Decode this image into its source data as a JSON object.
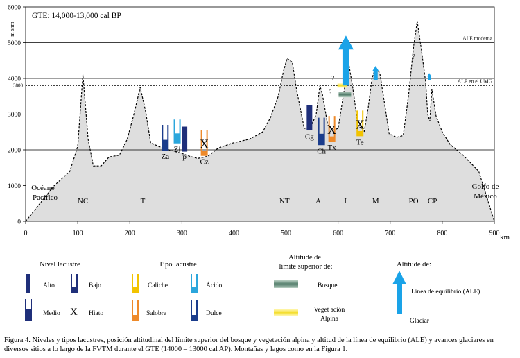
{
  "chart_data": {
    "type": "area",
    "title": "GTE:  14,000-13,000   cal BP",
    "ylabel": "m snm",
    "xlabel": "km",
    "xlim": [
      0,
      900
    ],
    "ylim": [
      0,
      6000
    ],
    "xticks": [
      0,
      100,
      200,
      300,
      400,
      500,
      600,
      700,
      800,
      900
    ],
    "yticks": [
      0,
      1000,
      2000,
      3000,
      4000,
      5000,
      6000
    ],
    "extra_ytick": {
      "value": 3800,
      "label": "3800"
    },
    "hlines": [
      {
        "value": 5000,
        "label": "ALE moderna",
        "style": "solid"
      },
      {
        "value": 4000,
        "label": "",
        "style": "solid"
      },
      {
        "value": 3800,
        "label": "ALE en el UMG",
        "style": "dashed"
      },
      {
        "value": 3000,
        "label": "",
        "style": "solid"
      },
      {
        "value": 2000,
        "label": "",
        "style": "solid"
      }
    ],
    "profile": [
      [
        0,
        0
      ],
      [
        55,
        1000
      ],
      [
        85,
        1400
      ],
      [
        100,
        2100
      ],
      [
        110,
        4100
      ],
      [
        120,
        2300
      ],
      [
        130,
        1550
      ],
      [
        145,
        1550
      ],
      [
        160,
        1800
      ],
      [
        180,
        1850
      ],
      [
        195,
        2300
      ],
      [
        208,
        3000
      ],
      [
        220,
        3750
      ],
      [
        230,
        3100
      ],
      [
        240,
        2200
      ],
      [
        255,
        2100
      ],
      [
        275,
        2000
      ],
      [
        300,
        1900
      ],
      [
        315,
        1820
      ],
      [
        330,
        1760
      ],
      [
        350,
        1820
      ],
      [
        370,
        2050
      ],
      [
        400,
        2200
      ],
      [
        430,
        2300
      ],
      [
        455,
        2500
      ],
      [
        470,
        2900
      ],
      [
        485,
        3500
      ],
      [
        495,
        4200
      ],
      [
        502,
        4560
      ],
      [
        512,
        4450
      ],
      [
        520,
        3700
      ],
      [
        535,
        2600
      ],
      [
        548,
        2650
      ],
      [
        558,
        3000
      ],
      [
        565,
        3800
      ],
      [
        570,
        3550
      ],
      [
        580,
        2700
      ],
      [
        590,
        2550
      ],
      [
        600,
        2600
      ],
      [
        612,
        3700
      ],
      [
        620,
        4450
      ],
      [
        628,
        3750
      ],
      [
        638,
        2700
      ],
      [
        650,
        2500
      ],
      [
        658,
        3200
      ],
      [
        665,
        4000
      ],
      [
        672,
        4300
      ],
      [
        680,
        4150
      ],
      [
        688,
        3400
      ],
      [
        698,
        2450
      ],
      [
        712,
        2350
      ],
      [
        725,
        2400
      ],
      [
        735,
        3500
      ],
      [
        745,
        4900
      ],
      [
        752,
        5600
      ],
      [
        760,
        4800
      ],
      [
        768,
        3900
      ],
      [
        772,
        3000
      ],
      [
        776,
        2800
      ],
      [
        780,
        3700
      ],
      [
        788,
        2950
      ],
      [
        800,
        2500
      ],
      [
        815,
        2150
      ],
      [
        840,
        1850
      ],
      [
        870,
        1400
      ],
      [
        900,
        0
      ]
    ],
    "mountains": [
      {
        "label": "NC",
        "x": 110
      },
      {
        "label": "T",
        "x": 225
      },
      {
        "label": "NT",
        "x": 497
      },
      {
        "label": "A",
        "x": 562
      },
      {
        "label": "I",
        "x": 614
      },
      {
        "label": "M",
        "x": 672
      },
      {
        "label": "PO",
        "x": 745
      },
      {
        "label": "CP",
        "x": 781
      }
    ],
    "sites": [
      {
        "label": "Za",
        "x": 268,
        "lake_type": "Dulce",
        "level": "Medio",
        "bottom": 2000,
        "top": 2700
      },
      {
        "label": "Zi",
        "x": 291,
        "lake_type": "Ácido",
        "level": "Medio",
        "bottom": 2200,
        "top": 2850
      },
      {
        "label": "P",
        "x": 305,
        "lake_type": "Dulce",
        "level": "Alto",
        "bottom": 1950,
        "top": 2650
      },
      {
        "label": "Cz",
        "x": 343,
        "lake_type": "Salobre",
        "level": "Hiato",
        "bottom": 1850,
        "top": 2550
      },
      {
        "label": "Cg",
        "x": 545,
        "lake_type": "Dulce",
        "level": "Alto",
        "bottom": 2550,
        "top": 3250
      },
      {
        "label": "Ch",
        "x": 568,
        "lake_type": "Dulce",
        "level": "Medio",
        "bottom": 2150,
        "top": 2900
      },
      {
        "label": "Tx",
        "x": 588,
        "lake_type": "Salobre",
        "level": "Hiato",
        "bottom": 2250,
        "top": 2950
      },
      {
        "label": "Te",
        "x": 642,
        "lake_type": "Caliche",
        "level": "Hiato",
        "bottom": 2400,
        "top": 3100
      }
    ],
    "treeline": [
      {
        "x": 613,
        "y": 3550
      }
    ],
    "alpine_veg": [
      {
        "x": 608,
        "y": 3800
      }
    ],
    "question_marks": [
      {
        "x": 590,
        "y": 3950
      },
      {
        "x": 585,
        "y": 3550
      },
      {
        "x": 745,
        "y": 4550
      }
    ],
    "ela": [
      {
        "x": 615,
        "base": 3800,
        "top": 5200,
        "size": "large"
      },
      {
        "x": 672,
        "base": 3950,
        "top": 4350,
        "size": "small"
      },
      {
        "x": 775,
        "base": 3950,
        "top": 4150,
        "size": "tiny"
      }
    ],
    "side_labels": [
      {
        "text": "Océano",
        "line": 1
      },
      {
        "text": "Pacífico",
        "line": 2
      },
      {
        "text": "Golfo de",
        "line": 1
      },
      {
        "text": "México",
        "line": 2
      }
    ]
  },
  "legend": {
    "nivel_title": "Nivel lacustre",
    "alto": "Alto",
    "bajo": "Bajo",
    "medio": "Medio",
    "hiato_symbol": "X",
    "hiato": "Hiato",
    "tipo_title": "Tipo lacustre",
    "caliche": "Caliche",
    "acido": "Ácido",
    "salobre": "Salobre",
    "dulce": "Dulce",
    "altitud_title_1": "Altitude del",
    "altitud_title_2": "límite superior  de:",
    "bosque": "Bosque",
    "vegetacion_1": "Veget ación",
    "vegetacion_2": "Alpina",
    "ale_title": "Altitude de:",
    "ale_label": "Línea  de  equilibrio  (ALE)",
    "glaciar": "Glaciar"
  },
  "colors": {
    "alto": "#1f2f7a",
    "dulce": "#1a3c8c",
    "acido": "#2ba6dc",
    "caliche": "#f2c300",
    "salobre": "#ee8a2a",
    "ela": "#1aa3e8",
    "profile_fill": "#dedede"
  },
  "caption": "Figura 4. Niveles y tipos lacustres, posición altitudinal del límite superior del bosque y vegetación alpina y altitud de la línea de equilibrio (ALE) y avances glaciares en diversos sitios a lo largo de la FVTM durante el GTE (14000 – 13000 cal AP). Montañas y lagos como en la Figura 1."
}
